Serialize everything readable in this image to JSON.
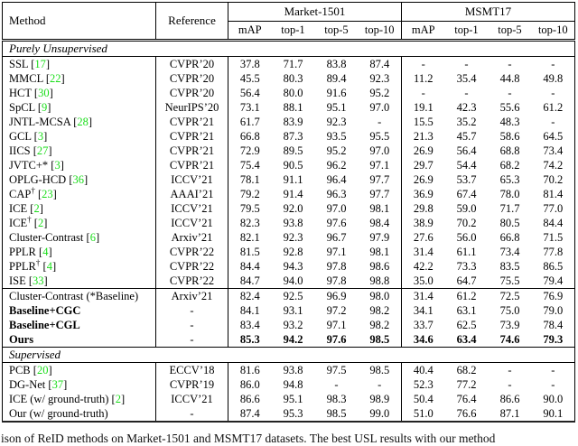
{
  "colors": {
    "citation_green": "#1bdd1b"
  },
  "caption": {
    "text": "ison of ReID methods on Market-1501 and MSMT17 datasets.  The best USL results with our method"
  },
  "table": {
    "headers": {
      "method": "Method",
      "reference": "Reference",
      "metrics": [
        "mAP",
        "top-1",
        "top-5",
        "top-10"
      ]
    },
    "groups": [
      {
        "label": "Market-1501"
      },
      {
        "label": "MSMT17"
      }
    ],
    "dagger_symbol": "†",
    "sections": [
      {
        "label": "Purely Unsupervised",
        "groups": [
          [
            {
              "method": "SSL",
              "cite": "17",
              "ref": "CVPR’20",
              "market": [
                "37.8",
                "71.7",
                "83.8",
                "87.4"
              ],
              "msmt": [
                "-",
                "-",
                "-",
                "-"
              ]
            },
            {
              "method": "MMCL",
              "cite": "22",
              "ref": "CVPR’20",
              "market": [
                "45.5",
                "80.3",
                "89.4",
                "92.3"
              ],
              "msmt": [
                "11.2",
                "35.4",
                "44.8",
                "49.8"
              ]
            },
            {
              "method": "HCT",
              "cite": "30",
              "ref": "CVPR’20",
              "market": [
                "56.4",
                "80.0",
                "91.6",
                "95.2"
              ],
              "msmt": [
                "-",
                "-",
                "-",
                "-"
              ]
            },
            {
              "method": "SpCL",
              "cite": "9",
              "ref": "NeurIPS’20",
              "market": [
                "73.1",
                "88.1",
                "95.1",
                "97.0"
              ],
              "msmt": [
                "19.1",
                "42.3",
                "55.6",
                "61.2"
              ]
            },
            {
              "method": "JNTL-MCSA",
              "cite": "28",
              "ref": "CVPR’21",
              "market": [
                "61.7",
                "83.9",
                "92.3",
                "-"
              ],
              "msmt": [
                "15.5",
                "35.2",
                "48.3",
                "-"
              ]
            },
            {
              "method": "GCL",
              "cite": "3",
              "ref": "CVPR’21",
              "market": [
                "66.8",
                "87.3",
                "93.5",
                "95.5"
              ],
              "msmt": [
                "21.3",
                "45.7",
                "58.6",
                "64.5"
              ]
            },
            {
              "method": "IICS",
              "cite": "27",
              "ref": "CVPR’21",
              "market": [
                "72.9",
                "89.5",
                "95.2",
                "97.0"
              ],
              "msmt": [
                "26.9",
                "56.4",
                "68.8",
                "73.4"
              ]
            },
            {
              "method": "JVTC+*",
              "cite": "3",
              "ref": "CVPR’21",
              "market": [
                "75.4",
                "90.5",
                "96.2",
                "97.1"
              ],
              "msmt": [
                "29.7",
                "54.4",
                "68.2",
                "74.2"
              ]
            },
            {
              "method": "OPLG-HCD",
              "cite": "36",
              "ref": "ICCV’21",
              "market": [
                "78.1",
                "91.1",
                "96.4",
                "97.7"
              ],
              "msmt": [
                "26.9",
                "53.7",
                "65.3",
                "70.2"
              ]
            },
            {
              "method": "CAP",
              "dagger": true,
              "cite": "23",
              "ref": "AAAI’21",
              "market": [
                "79.2",
                "91.4",
                "96.3",
                "97.7"
              ],
              "msmt": [
                "36.9",
                "67.4",
                "78.0",
                "81.4"
              ]
            },
            {
              "method": "ICE",
              "cite": "2",
              "ref": "ICCV’21",
              "market": [
                "79.5",
                "92.0",
                "97.0",
                "98.1"
              ],
              "msmt": [
                "29.8",
                "59.0",
                "71.7",
                "77.0"
              ]
            },
            {
              "method": "ICE",
              "dagger": true,
              "cite": "2",
              "ref": "ICCV’21",
              "market": [
                "82.3",
                "93.8",
                "97.6",
                "98.4"
              ],
              "msmt": [
                "38.9",
                "70.2",
                "80.5",
                "84.4"
              ]
            },
            {
              "method": "Cluster-Contrast",
              "cite": "6",
              "ref": "Arxiv’21",
              "market": [
                "82.1",
                "92.3",
                "96.7",
                "97.9"
              ],
              "msmt": [
                "27.6",
                "56.0",
                "66.8",
                "71.5"
              ]
            },
            {
              "method": "PPLR",
              "cite": "4",
              "ref": "CVPR’22",
              "market": [
                "81.5",
                "92.8",
                "97.1",
                "98.1"
              ],
              "msmt": [
                "31.4",
                "61.1",
                "73.4",
                "77.8"
              ]
            },
            {
              "method": "PPLR",
              "dagger": true,
              "cite": "4",
              "ref": "CVPR’22",
              "market": [
                "84.4",
                "94.3",
                "97.8",
                "98.6"
              ],
              "msmt": [
                "42.2",
                "73.3",
                "83.5",
                "86.5"
              ]
            },
            {
              "method": "ISE",
              "cite": "33",
              "ref": "CVPR’22",
              "market": [
                "84.7",
                "94.0",
                "97.8",
                "98.8"
              ],
              "msmt": [
                "35.0",
                "64.7",
                "75.5",
                "79.4"
              ]
            }
          ],
          [
            {
              "method": "Cluster-Contrast (*Baseline)",
              "ref": "Arxiv’21",
              "market": [
                "82.4",
                "92.5",
                "96.9",
                "98.0"
              ],
              "msmt": [
                "31.4",
                "61.2",
                "72.5",
                "76.9"
              ]
            },
            {
              "method": "Baseline+CGC",
              "bold_method": true,
              "ref": "-",
              "market": [
                "84.1",
                "93.1",
                "97.2",
                "98.2"
              ],
              "msmt": [
                "34.1",
                "63.1",
                "75.0",
                "79.0"
              ]
            },
            {
              "method": "Baseline+CGL",
              "bold_method": true,
              "ref": "-",
              "market": [
                "83.4",
                "93.2",
                "97.1",
                "98.2"
              ],
              "msmt": [
                "33.7",
                "62.5",
                "73.9",
                "78.4"
              ]
            },
            {
              "method": "Ours",
              "bold_method": true,
              "bold_values": true,
              "ref": "-",
              "market": [
                "85.3",
                "94.2",
                "97.6",
                "98.5"
              ],
              "msmt": [
                "34.6",
                "63.4",
                "74.6",
                "79.3"
              ]
            }
          ]
        ]
      },
      {
        "label": "Supervised",
        "groups": [
          [
            {
              "method": "PCB",
              "cite": "20",
              "ref": "ECCV’18",
              "market": [
                "81.6",
                "93.8",
                "97.5",
                "98.5"
              ],
              "msmt": [
                "40.4",
                "68.2",
                "-",
                "-"
              ]
            },
            {
              "method": "DG-Net",
              "cite": "37",
              "ref": "CVPR’19",
              "market": [
                "86.0",
                "94.8",
                "-",
                "-"
              ],
              "msmt": [
                "52.3",
                "77.2",
                "-",
                "-"
              ]
            },
            {
              "method": "ICE (w/ ground-truth)",
              "cite": "2",
              "ref": "ICCV’21",
              "market": [
                "86.6",
                "95.1",
                "98.3",
                "98.9"
              ],
              "msmt": [
                "50.4",
                "76.4",
                "86.6",
                "90.0"
              ]
            },
            {
              "method": "Our (w/ ground-truth)",
              "ref": "-",
              "market": [
                "87.4",
                "95.3",
                "98.5",
                "99.0"
              ],
              "msmt": [
                "51.0",
                "76.6",
                "87.1",
                "90.1"
              ]
            }
          ]
        ]
      }
    ]
  }
}
